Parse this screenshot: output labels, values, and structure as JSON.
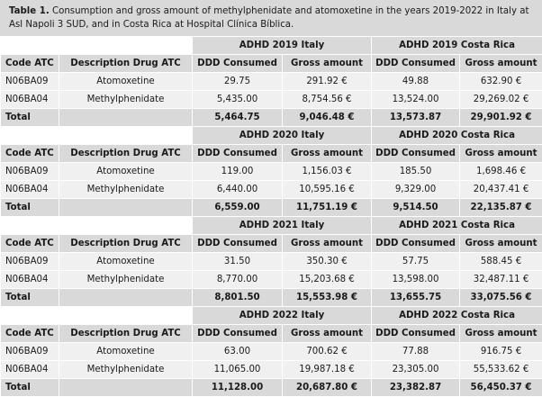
{
  "caption": {
    "label": "Table 1.",
    "text": "Consumption and gross amount of methylphenidate and atomoxetine in the years 2019-2022 in Italy at Asl Napoli 3 SUD, and in Costa Rica at Hospital Clínica Bíblica."
  },
  "columns": {
    "code": "Code ATC",
    "description": "Description Drug ATC",
    "ddd": "DDD Consumed",
    "gross": "Gross amount"
  },
  "total_label": "Total",
  "blocks": [
    {
      "italy_header": "ADHD 2019 Italy",
      "costa_rica_header": "ADHD 2019 Costa Rica",
      "rows": [
        {
          "code": "N06BA09",
          "description": "Atomoxetine",
          "italy_ddd": "29.75",
          "italy_gross": "291.92 €",
          "cr_ddd": "49.88",
          "cr_gross": "632.90 €"
        },
        {
          "code": "N06BA04",
          "description": "Methylphenidate",
          "italy_ddd": "5,435.00",
          "italy_gross": "8,754.56 €",
          "cr_ddd": "13,524.00",
          "cr_gross": "29,269.02 €"
        }
      ],
      "total": {
        "italy_ddd": "5,464.75",
        "italy_gross": "9,046.48 €",
        "cr_ddd": "13,573.87",
        "cr_gross": "29,901.92 €"
      }
    },
    {
      "italy_header": "ADHD 2020 Italy",
      "costa_rica_header": "ADHD 2020 Costa Rica",
      "rows": [
        {
          "code": "N06BA09",
          "description": "Atomoxetine",
          "italy_ddd": "119.00",
          "italy_gross": "1,156.03 €",
          "cr_ddd": "185.50",
          "cr_gross": "1,698.46 €"
        },
        {
          "code": "N06BA04",
          "description": "Methylphenidate",
          "italy_ddd": "6,440.00",
          "italy_gross": "10,595.16 €",
          "cr_ddd": "9,329.00",
          "cr_gross": "20,437.41 €"
        }
      ],
      "total": {
        "italy_ddd": "6,559.00",
        "italy_gross": "11,751.19 €",
        "cr_ddd": "9,514.50",
        "cr_gross": "22,135.87 €"
      }
    },
    {
      "italy_header": "ADHD 2021 Italy",
      "costa_rica_header": "ADHD 2021 Costa Rica",
      "rows": [
        {
          "code": "N06BA09",
          "description": "Atomoxetine",
          "italy_ddd": "31.50",
          "italy_gross": "350.30 €",
          "cr_ddd": "57.75",
          "cr_gross": "588.45 €"
        },
        {
          "code": "N06BA04",
          "description": "Methylphenidate",
          "italy_ddd": "8,770.00",
          "italy_gross": "15,203.68 €",
          "cr_ddd": "13,598.00",
          "cr_gross": "32,487.11 €"
        }
      ],
      "total": {
        "italy_ddd": "8,801.50",
        "italy_gross": "15,553.98 €",
        "cr_ddd": "13,655.75",
        "cr_gross": "33,075.56 €"
      }
    },
    {
      "italy_header": "ADHD 2022 Italy",
      "costa_rica_header": "ADHD 2022 Costa Rica",
      "rows": [
        {
          "code": "N06BA09",
          "description": "Atomoxetine",
          "italy_ddd": "63.00",
          "italy_gross": "700.62 €",
          "cr_ddd": "77.88",
          "cr_gross": "916.75 €"
        },
        {
          "code": "N06BA04",
          "description": "Methylphenidate",
          "italy_ddd": "11,065.00",
          "italy_gross": "19,987.18 €",
          "cr_ddd": "23,305.00",
          "cr_gross": "55,533.62 €"
        }
      ],
      "total": {
        "italy_ddd": "11,128.00",
        "italy_gross": "20,687.80 €",
        "cr_ddd": "23,382.87",
        "cr_gross": "56,450.37 €"
      }
    }
  ]
}
